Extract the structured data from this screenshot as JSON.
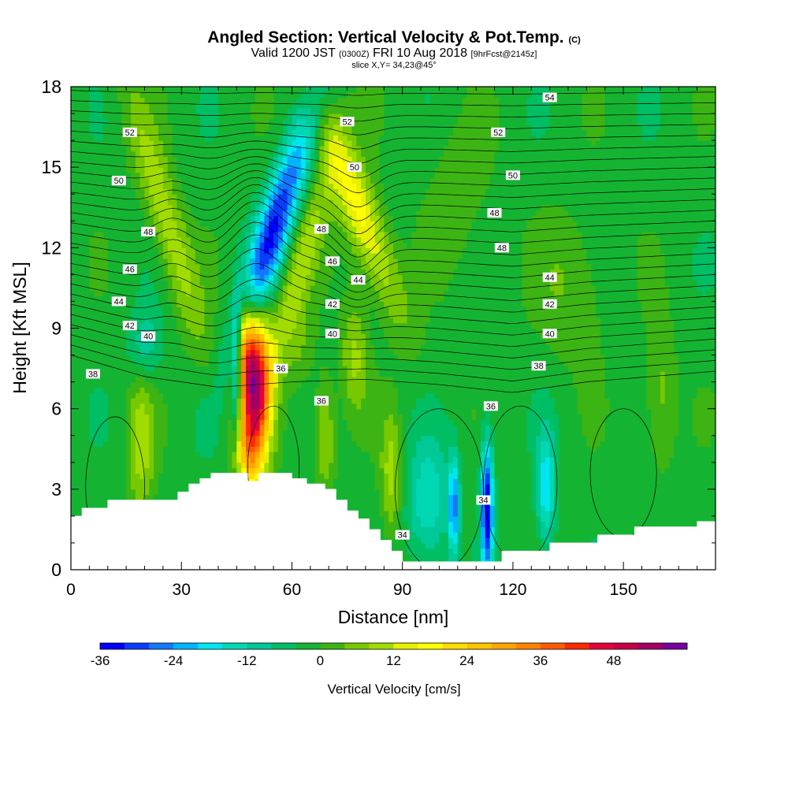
{
  "header": {
    "title_main": "Angled Section: Vertical Velocity & Pot.Temp.",
    "title_mark": "(C)",
    "valid_prefix": "Valid 1200 JST",
    "valid_utc": "(0300Z)",
    "valid_date": "FRI 10 Aug 2018",
    "valid_fcst": "[9hrFcst@2145z]",
    "slice": "slice X,Y= 34,23@45°"
  },
  "colorbar": {
    "label": "Vertical Velocity [cm/s]",
    "tick_labels": [
      "-36",
      "-24",
      "-12",
      "0",
      "12",
      "24",
      "36",
      "48"
    ],
    "tick_values": [
      -36,
      -24,
      -12,
      0,
      12,
      24,
      36,
      48
    ],
    "bins_min": -36,
    "bins_step": 4,
    "colors": [
      "#0000ff",
      "#0a3cff",
      "#1478ff",
      "#00b4ff",
      "#00e6f0",
      "#00d8b4",
      "#00c896",
      "#00be64",
      "#14b432",
      "#3cb414",
      "#78c800",
      "#a0dc00",
      "#e6f000",
      "#ffff00",
      "#ffdc00",
      "#ffc300",
      "#ffa500",
      "#ff8200",
      "#ff5a00",
      "#ff2800",
      "#e6003c",
      "#c80046",
      "#a00064",
      "#7800a0"
    ]
  },
  "chart_data": {
    "type": "heatmap",
    "title": "Angled Section: Vertical Velocity & Pot.Temp.",
    "xlabel": "Distance [nm]",
    "ylabel": "Height [Kft MSL]",
    "xlim": [
      0,
      175
    ],
    "ylim": [
      0,
      18
    ],
    "x_ticks": [
      0,
      30,
      60,
      90,
      120,
      150
    ],
    "y_ticks": [
      0,
      3,
      6,
      9,
      12,
      15,
      18
    ],
    "background_value": -2,
    "w_features": [
      {
        "x": 50,
        "y": 6.8,
        "sx": 3.0,
        "sy": 1.9,
        "v": 52,
        "shear": 0
      },
      {
        "x": 47,
        "y": 8.5,
        "sx": 2.2,
        "sy": 1.2,
        "v": 20,
        "shear": 0
      },
      {
        "x": 48,
        "y": 4.2,
        "sx": 2.5,
        "sy": 1.0,
        "v": 16,
        "shear": 0
      },
      {
        "x": 55,
        "y": 12.7,
        "sx": 3.5,
        "sy": 3.0,
        "v": -30,
        "shear": 2.2
      },
      {
        "x": 62,
        "y": 11.2,
        "sx": 3.0,
        "sy": 3.0,
        "v": 12,
        "shear": 2.0
      },
      {
        "x": 78,
        "y": 13.5,
        "sx": 4.0,
        "sy": 2.8,
        "v": 20,
        "shear": -2.6
      },
      {
        "x": 26,
        "y": 13.0,
        "sx": 3.5,
        "sy": 3.5,
        "v": 13,
        "shear": -2.0
      },
      {
        "x": 77,
        "y": 8.0,
        "sx": 2.5,
        "sy": 1.5,
        "v": 11,
        "shear": 0
      },
      {
        "x": 45,
        "y": 7.5,
        "sx": 0.9,
        "sy": 1.8,
        "v": -24,
        "shear": 0
      },
      {
        "x": 97,
        "y": 2.5,
        "sx": 4.0,
        "sy": 1.6,
        "v": -14,
        "shear": 0
      },
      {
        "x": 104,
        "y": 2.3,
        "sx": 1.0,
        "sy": 1.4,
        "v": -22,
        "shear": 0
      },
      {
        "x": 113,
        "y": 2.3,
        "sx": 1.2,
        "sy": 1.8,
        "v": -34,
        "shear": 0
      },
      {
        "x": 129,
        "y": 3.0,
        "sx": 1.8,
        "sy": 1.5,
        "v": -18,
        "shear": 0
      },
      {
        "x": 87,
        "y": 3.5,
        "sx": 2.0,
        "sy": 1.6,
        "v": 12,
        "shear": 0
      },
      {
        "x": 69,
        "y": 5.0,
        "sx": 2.0,
        "sy": 1.5,
        "v": 12,
        "shear": 0
      },
      {
        "x": 19,
        "y": 4.7,
        "sx": 2.5,
        "sy": 2.0,
        "v": 12,
        "shear": 0
      },
      {
        "x": 136,
        "y": 10.5,
        "sx": 7.0,
        "sy": 2.0,
        "v": 6,
        "shear": 0
      },
      {
        "x": 160,
        "y": 6.5,
        "sx": 3.0,
        "sy": 2.0,
        "v": 8,
        "shear": 0
      },
      {
        "x": 105,
        "y": 14.0,
        "sx": 6.0,
        "sy": 2.0,
        "v": 5,
        "shear": 0
      },
      {
        "x": 20,
        "y": 8.3,
        "sx": 3.0,
        "sy": 1.0,
        "v": -10,
        "shear": 0
      },
      {
        "x": 62,
        "y": 8.2,
        "sx": 3.0,
        "sy": 1.2,
        "v": 6,
        "shear": 0
      }
    ],
    "theta_contours": {
      "levels": [
        34,
        36,
        38,
        40,
        42,
        44,
        46,
        48,
        50,
        52,
        54
      ],
      "interval": 1,
      "base_height_kft": {
        "x": [
          0,
          20,
          40,
          60,
          80,
          100,
          120,
          140,
          175
        ],
        "y": [
          8.0,
          7.2,
          6.8,
          7.0,
          7.1,
          6.9,
          6.6,
          7.0,
          7.4
        ]
      },
      "labels": [
        {
          "text": "38",
          "x": 6,
          "y": 7.3
        },
        {
          "text": "40",
          "x": 21,
          "y": 8.7
        },
        {
          "text": "42",
          "x": 16,
          "y": 9.1
        },
        {
          "text": "44",
          "x": 13,
          "y": 10.0
        },
        {
          "text": "46",
          "x": 16,
          "y": 11.2
        },
        {
          "text": "48",
          "x": 21,
          "y": 12.6
        },
        {
          "text": "50",
          "x": 13,
          "y": 14.5
        },
        {
          "text": "52",
          "x": 16,
          "y": 16.3
        },
        {
          "text": "36",
          "x": 57,
          "y": 7.5
        },
        {
          "text": "36",
          "x": 68,
          "y": 6.3
        },
        {
          "text": "48",
          "x": 68,
          "y": 12.7
        },
        {
          "text": "46",
          "x": 71,
          "y": 11.5
        },
        {
          "text": "42",
          "x": 71,
          "y": 9.9
        },
        {
          "text": "40",
          "x": 71,
          "y": 8.8
        },
        {
          "text": "44",
          "x": 78,
          "y": 10.8
        },
        {
          "text": "50",
          "x": 77,
          "y": 15.0
        },
        {
          "text": "52",
          "x": 75,
          "y": 16.7
        },
        {
          "text": "54",
          "x": 130,
          "y": 17.6
        },
        {
          "text": "52",
          "x": 116,
          "y": 16.3
        },
        {
          "text": "50",
          "x": 120,
          "y": 14.7
        },
        {
          "text": "48",
          "x": 115,
          "y": 13.3
        },
        {
          "text": "48",
          "x": 117,
          "y": 12.0
        },
        {
          "text": "44",
          "x": 130,
          "y": 10.9
        },
        {
          "text": "42",
          "x": 130,
          "y": 9.9
        },
        {
          "text": "40",
          "x": 130,
          "y": 8.8
        },
        {
          "text": "38",
          "x": 127,
          "y": 7.6
        },
        {
          "text": "36",
          "x": 114,
          "y": 6.1
        },
        {
          "text": "34",
          "x": 90,
          "y": 1.3
        },
        {
          "text": "34",
          "x": 112,
          "y": 2.6
        }
      ]
    },
    "terrain_kft": {
      "x": [
        0,
        3,
        3,
        10,
        10,
        29,
        29,
        32,
        32,
        35,
        35,
        38,
        38,
        48,
        48,
        51,
        51,
        60,
        60,
        64,
        64,
        69,
        69,
        72,
        72,
        75,
        75,
        78,
        78,
        81,
        81,
        84,
        84,
        87,
        87,
        90,
        90,
        96,
        96,
        117,
        117,
        130,
        130,
        143,
        143,
        153,
        153,
        170,
        170,
        175
      ],
      "y": [
        2.0,
        2.0,
        2.3,
        2.3,
        2.6,
        2.6,
        2.9,
        2.9,
        3.2,
        3.2,
        3.4,
        3.4,
        3.6,
        3.6,
        3.3,
        3.3,
        3.6,
        3.6,
        3.4,
        3.4,
        3.2,
        3.2,
        3.0,
        3.0,
        2.6,
        2.6,
        2.2,
        2.2,
        1.9,
        1.9,
        1.5,
        1.5,
        1.1,
        1.1,
        0.7,
        0.7,
        0.3,
        0.3,
        0.3,
        0.3,
        0.7,
        0.7,
        1.0,
        1.0,
        1.3,
        1.3,
        1.6,
        1.6,
        1.8,
        1.8
      ]
    }
  },
  "axes": {
    "xlabel": "Distance [nm]",
    "ylabel": "Height [Kft MSL]",
    "x_tick_labels": [
      "0",
      "30",
      "60",
      "90",
      "120",
      "150"
    ],
    "y_tick_labels": [
      "0",
      "3",
      "6",
      "9",
      "12",
      "15",
      "18"
    ]
  }
}
